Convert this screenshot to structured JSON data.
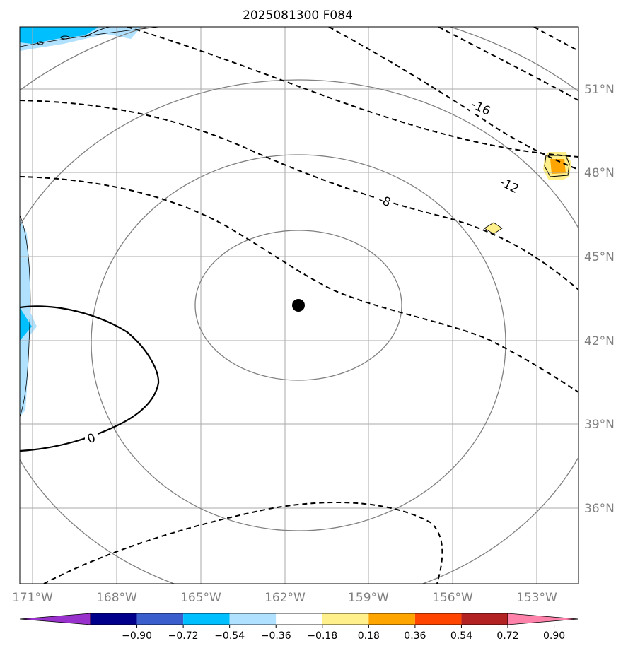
{
  "title": "2025081300 F084",
  "lat_ticks": [
    "36°N",
    "39°N",
    "42°N",
    "45°N",
    "48°N",
    "51°N"
  ],
  "lon_ticks": [
    "171°W",
    "168°W",
    "165°W",
    "162°W",
    "159°W",
    "156°W",
    "153°W"
  ],
  "contour_labels": [
    "-16",
    "-12",
    "-8",
    "0"
  ],
  "colorbar": {
    "tick_labels": [
      "−0.90",
      "−0.72",
      "−0.54",
      "−0.36",
      "−0.18",
      "0.18",
      "0.36",
      "0.54",
      "0.72",
      "0.90"
    ],
    "colors": [
      "#9932cc",
      "#00008b",
      "#3a5fcd",
      "#00bfff",
      "#b0e2ff",
      "#ffffff",
      "#fff08c",
      "#ffa500",
      "#ff4500",
      "#b22222",
      "#ff82ab"
    ]
  },
  "center_marker": {
    "lon": -162,
    "lat": 43.2
  },
  "colors": {
    "grid": "#aaaaaa",
    "range_rings": "#808080",
    "contours": "#000000"
  }
}
